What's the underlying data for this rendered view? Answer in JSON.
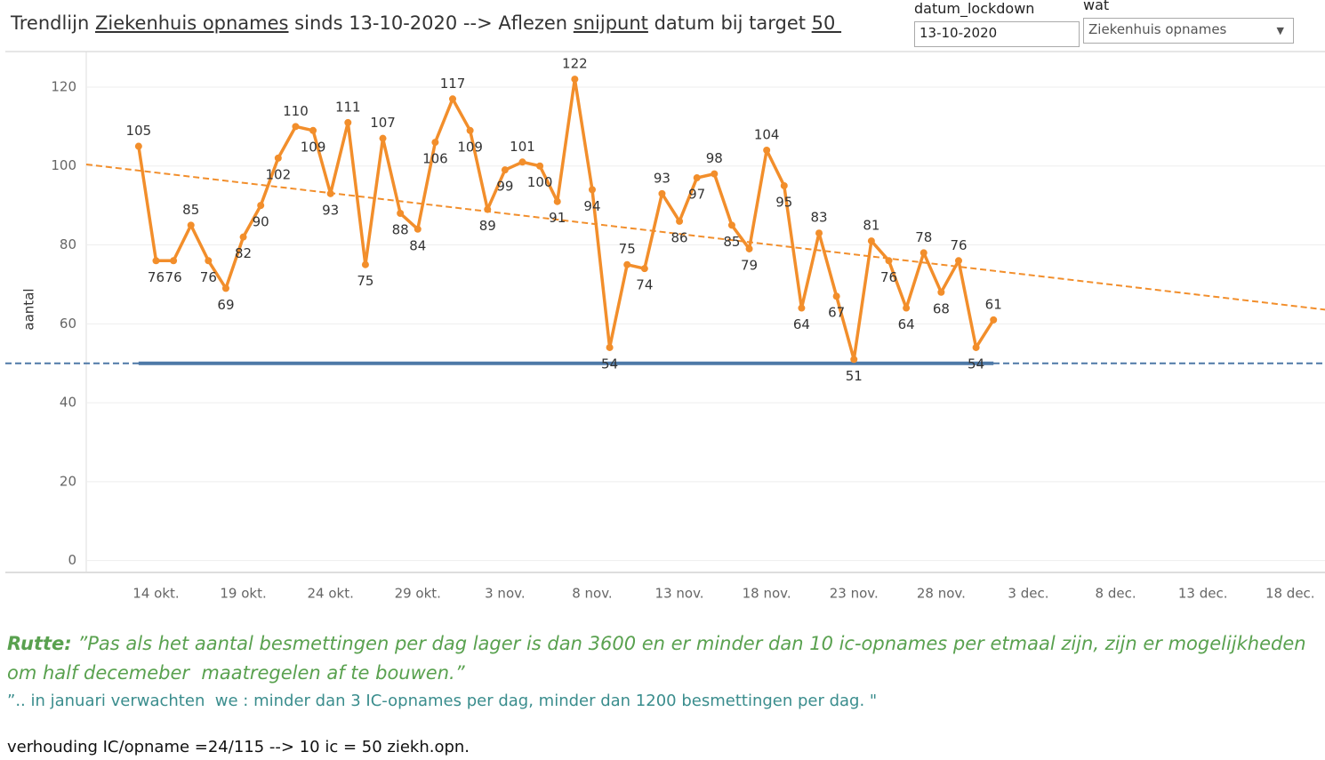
{
  "header": {
    "title_parts": [
      "Trendlijn ",
      "Ziekenhuis opnames",
      " sinds 13-10-2020 --> Aflezen ",
      "snijpunt",
      " datum bij target ",
      "50 "
    ]
  },
  "controls": {
    "date_label": "datum_lockdown",
    "date_value": "13-10-2020",
    "what_label": "wat",
    "what_value": "Ziekenhuis opnames"
  },
  "chart_data": {
    "type": "line",
    "x": [
      "13 okt.",
      "14 okt.",
      "15 okt.",
      "16 okt.",
      "17 okt.",
      "18 okt.",
      "19 okt.",
      "20 okt.",
      "21 okt.",
      "22 okt.",
      "23 okt.",
      "24 okt.",
      "25 okt.",
      "26 okt.",
      "27 okt.",
      "28 okt.",
      "29 okt.",
      "30 okt.",
      "31 okt.",
      "1 nov.",
      "2 nov.",
      "3 nov.",
      "4 nov.",
      "5 nov.",
      "6 nov.",
      "7 nov.",
      "8 nov.",
      "9 nov.",
      "10 nov.",
      "11 nov.",
      "12 nov.",
      "13 nov.",
      "14 nov.",
      "15 nov.",
      "16 nov.",
      "17 nov.",
      "18 nov.",
      "19 nov.",
      "20 nov.",
      "21 nov.",
      "22 nov.",
      "23 nov.",
      "24 nov.",
      "25 nov.",
      "26 nov.",
      "27 nov.",
      "28 nov.",
      "29 nov.",
      "30 nov.",
      "1 dec."
    ],
    "values": [
      105,
      76,
      76,
      85,
      76,
      69,
      82,
      90,
      102,
      110,
      109,
      93,
      111,
      75,
      107,
      88,
      84,
      106,
      117,
      109,
      89,
      99,
      101,
      100,
      91,
      122,
      94,
      54,
      75,
      74,
      93,
      86,
      97,
      98,
      85,
      79,
      104,
      95,
      64,
      83,
      67,
      51,
      81,
      76,
      64,
      78,
      68,
      76,
      54,
      61
    ],
    "color": "#f28e2b",
    "xlim": [
      "10 okt.",
      "20 dec."
    ],
    "xticks": [
      "14 okt.",
      "19 okt.",
      "24 okt.",
      "29 okt.",
      "3 nov.",
      "8 nov.",
      "13 nov.",
      "18 nov.",
      "23 nov.",
      "28 nov.",
      "3 dec.",
      "8 dec.",
      "13 dec.",
      "18 dec."
    ],
    "ylim": [
      -3,
      129
    ],
    "yticks": [
      0,
      20,
      40,
      60,
      80,
      100,
      120
    ],
    "y_label": "aantal",
    "grid": true,
    "trendline": {
      "start": 100.4,
      "end": 63.6,
      "color": "#f28e2b"
    },
    "target": 50,
    "target_color": "#4e79a7"
  },
  "notes": {
    "speaker": "Rutte:",
    "quote": "”Pas als het aantal besmettingen per dag lager is dan 3600 en er minder dan 10 ic-opnames per etmaal zijn, zijn er mogelijkheden om half decemeber  maatregelen af te bouwen.”",
    "quote2": "”.. in januari verwachten  we : minder dan 3 IC-opnames per dag, minder dan 1200 besmettingen per dag. \"",
    "ratio": "verhouding IC/opname =24/115 --> 10 ic = 50 ziekh.opn."
  }
}
